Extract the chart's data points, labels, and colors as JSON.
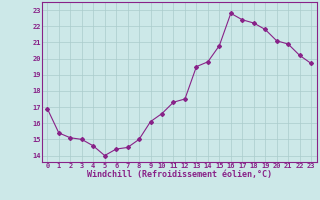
{
  "x": [
    0,
    1,
    2,
    3,
    4,
    5,
    6,
    7,
    8,
    9,
    10,
    11,
    12,
    13,
    14,
    15,
    16,
    17,
    18,
    19,
    20,
    21,
    22,
    23
  ],
  "y": [
    16.9,
    15.4,
    15.1,
    15.0,
    14.6,
    14.0,
    14.4,
    14.5,
    15.0,
    16.1,
    16.6,
    17.3,
    17.5,
    19.5,
    19.8,
    20.8,
    22.8,
    22.4,
    22.2,
    21.8,
    21.1,
    20.9,
    20.2,
    19.7
  ],
  "line_color": "#882288",
  "marker": "D",
  "marker_size": 2.0,
  "bg_color": "#cce8e8",
  "grid_color": "#aacccc",
  "xlabel": "Windchill (Refroidissement éolien,°C)",
  "ylabel_ticks": [
    14,
    15,
    16,
    17,
    18,
    19,
    20,
    21,
    22,
    23
  ],
  "xlabel_ticks": [
    0,
    1,
    2,
    3,
    4,
    5,
    6,
    7,
    8,
    9,
    10,
    11,
    12,
    13,
    14,
    15,
    16,
    17,
    18,
    19,
    20,
    21,
    22,
    23
  ],
  "xlim": [
    -0.5,
    23.5
  ],
  "ylim": [
    13.6,
    23.5
  ],
  "tick_label_color": "#882288",
  "axis_label_color": "#882288",
  "tick_fontsize": 5.0,
  "xlabel_fontsize": 6.0,
  "linewidth": 0.8
}
